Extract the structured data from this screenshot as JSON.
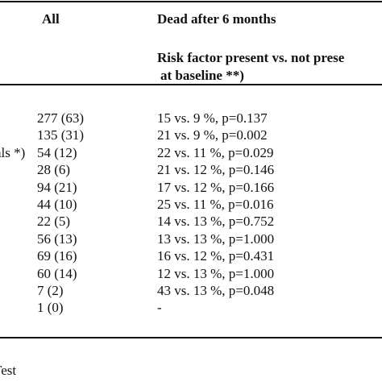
{
  "header": {
    "all": "All",
    "dead": "Dead after 6 months",
    "risk_line1": "Risk factor present vs. not prese",
    "risk_line2": "at baseline **)"
  },
  "rows": [
    {
      "label": "",
      "all": "277 (63)",
      "dead": "15 vs. 9 %, p=0.137"
    },
    {
      "label": "",
      "all": "135 (31)",
      "dead": "21 vs. 9 %, p=0.002"
    },
    {
      "label": "als *)",
      "all": "54 (12)",
      "dead": "22 vs. 11 %, p=0.029"
    },
    {
      "label": "",
      "all": "28 (6)",
      "dead": "21 vs. 12 %, p=0.146"
    },
    {
      "label": "",
      "all": "94 (21)",
      "dead": "17 vs. 12 %, p=0.166"
    },
    {
      "label": "",
      "all": "44 (10)",
      "dead": "25 vs. 11 %, p=0.016"
    },
    {
      "label": "",
      "all": "22 (5)",
      "dead": "14 vs. 13 %, p=0.752"
    },
    {
      "label": "",
      "all": "56 (13)",
      "dead": "13 vs. 13 %, p=1.000"
    },
    {
      "label": "",
      "all": "69 (16)",
      "dead": "16 vs. 12 %, p=0.431"
    },
    {
      "label": "",
      "all": "60 (14)",
      "dead": "12 vs. 13 %, p=1.000"
    },
    {
      "label": "",
      "all": "7 (2)",
      "dead": "43 vs. 13 %, p=0.048"
    },
    {
      "label": "",
      "all": "1 (0)",
      "dead": "-"
    }
  ],
  "footnote": "Test"
}
